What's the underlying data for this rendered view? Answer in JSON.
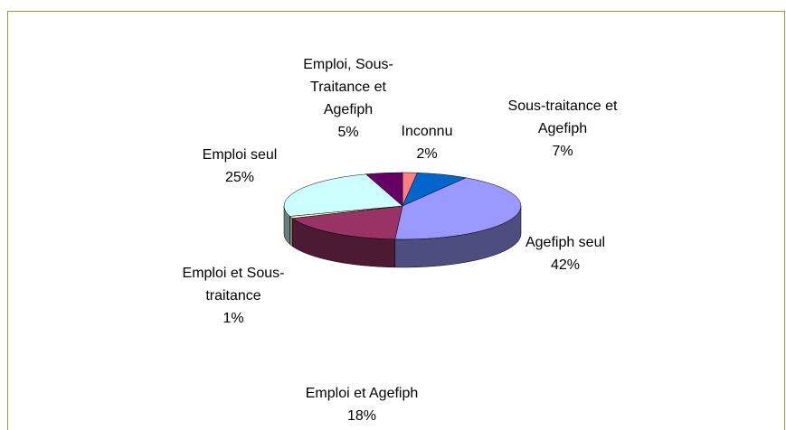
{
  "chart_data": {
    "type": "pie3d",
    "categories": [
      "Inconnu",
      "Sous-traitance et Agefiph",
      "Agefiph seul",
      "Emploi et Agefiph",
      "Emploi et Sous-traitance",
      "Emploi seul",
      "Emploi, Sous-Traitance et Agefiph"
    ],
    "values": [
      2,
      7,
      42,
      18,
      1,
      25,
      5
    ],
    "value_labels": [
      "2%",
      "7%",
      "42%",
      "18%",
      "1%",
      "25%",
      "5%"
    ],
    "colors": [
      "#ff8080",
      "#0066cc",
      "#9999ff",
      "#993366",
      "#ffffcc",
      "#ccffff",
      "#660066"
    ]
  }
}
